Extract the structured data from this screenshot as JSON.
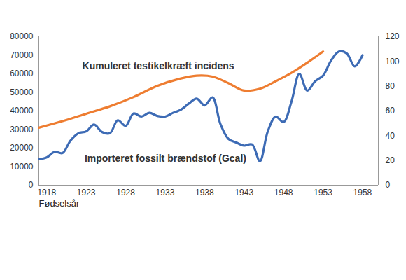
{
  "chart_data": {
    "type": "line",
    "xlabel": "Fødselsår",
    "xlim": [
      1917,
      1960
    ],
    "xticks": [
      1918,
      1923,
      1928,
      1933,
      1938,
      1943,
      1948,
      1953,
      1958
    ],
    "ylim": [
      0,
      80000
    ],
    "yticks": [
      0,
      10000,
      20000,
      30000,
      40000,
      50000,
      60000,
      70000,
      80000
    ],
    "y2lim": [
      0,
      120
    ],
    "y2ticks": [
      0,
      20,
      40,
      60,
      80,
      100,
      120
    ],
    "grid": false,
    "series": [
      {
        "name": "Kumuleret testikelkræft incidens",
        "color": "#ee7d31",
        "axis": "y",
        "x": [
          1917,
          1920,
          1923,
          1926,
          1929,
          1932,
          1935,
          1937,
          1939,
          1941,
          1943,
          1945,
          1947,
          1949,
          1951,
          1953
        ],
        "values": [
          31000,
          34500,
          38500,
          42500,
          47500,
          53500,
          57500,
          59000,
          58500,
          55000,
          51000,
          52000,
          56000,
          60500,
          66000,
          72000
        ]
      },
      {
        "name": "Importeret fossilt brændstof (Gcal)",
        "color": "#3d6bb5",
        "axis": "y2",
        "x": [
          1917,
          1918,
          1919,
          1920,
          1921,
          1922,
          1923,
          1924,
          1925,
          1926,
          1927,
          1928,
          1929,
          1930,
          1931,
          1932,
          1933,
          1934,
          1935,
          1936,
          1937,
          1938,
          1939,
          1940,
          1941,
          1942,
          1943,
          1944,
          1945,
          1946,
          1947,
          1948,
          1949,
          1950,
          1951,
          1952,
          1953,
          1954,
          1955,
          1956,
          1957,
          1958
        ],
        "values": [
          21,
          22.5,
          27,
          26,
          36,
          42,
          43.5,
          49,
          43,
          42,
          52.5,
          48,
          58,
          55.5,
          58.5,
          56,
          55.5,
          58.5,
          61,
          66,
          70,
          64.5,
          71,
          49.5,
          37.5,
          34.5,
          32,
          33,
          19.5,
          43.5,
          55.5,
          51,
          67.5,
          90,
          76.5,
          84,
          88.5,
          100.5,
          108,
          106.5,
          96,
          105
        ]
      }
    ],
    "annotations": [
      {
        "text": "Kumuleret testikelkræft incidens",
        "x": 1922.5,
        "y": 64000
      },
      {
        "text": "Importeret fossilt brændstof (Gcal)",
        "x": 1922.8,
        "y": 14500
      }
    ]
  }
}
